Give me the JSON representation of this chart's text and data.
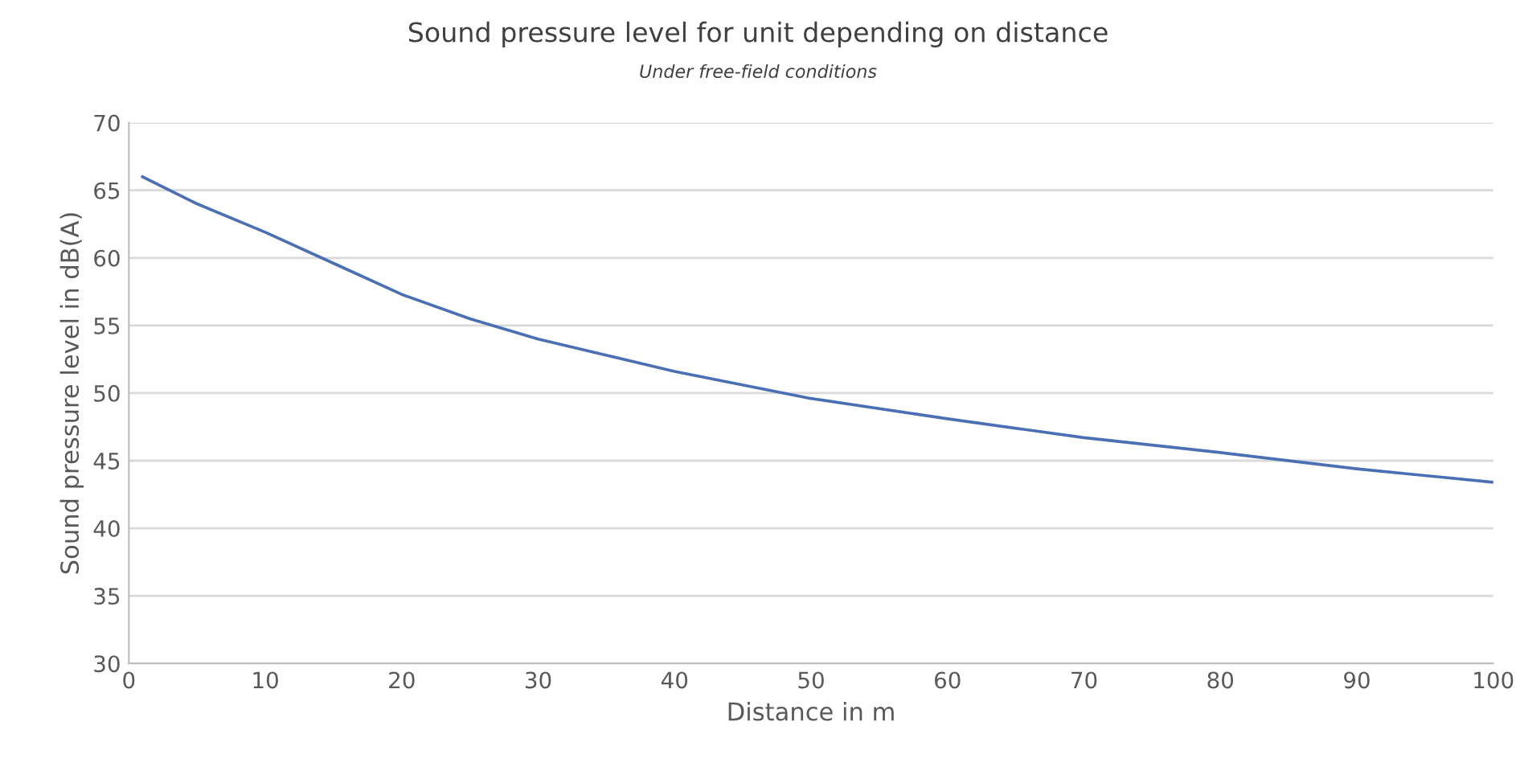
{
  "chart_data": {
    "type": "line",
    "title": "Sound pressure level for unit depending on distance",
    "subtitle": "Under free-field conditions",
    "xlabel": "Distance in m",
    "ylabel": "Sound pressure level in dB(A)",
    "series": [
      {
        "color": "#4a6fb5",
        "x": [
          1,
          5,
          10,
          15,
          20,
          25,
          30,
          40,
          50,
          60,
          70,
          80,
          90,
          100
        ],
        "values": [
          66.0,
          64.0,
          61.9,
          59.6,
          57.3,
          55.5,
          54.0,
          51.6,
          49.6,
          48.1,
          46.7,
          45.6,
          44.4,
          43.4
        ]
      }
    ],
    "xlim": [
      0,
      100
    ],
    "xticks": [
      0,
      10,
      20,
      30,
      40,
      50,
      60,
      70,
      80,
      90,
      100
    ],
    "ylim": [
      30,
      70
    ],
    "yticks": [
      30,
      35,
      40,
      45,
      50,
      55,
      60,
      65,
      70
    ],
    "grid": "y",
    "legend": false,
    "marker": "none",
    "line_style": "solid"
  }
}
